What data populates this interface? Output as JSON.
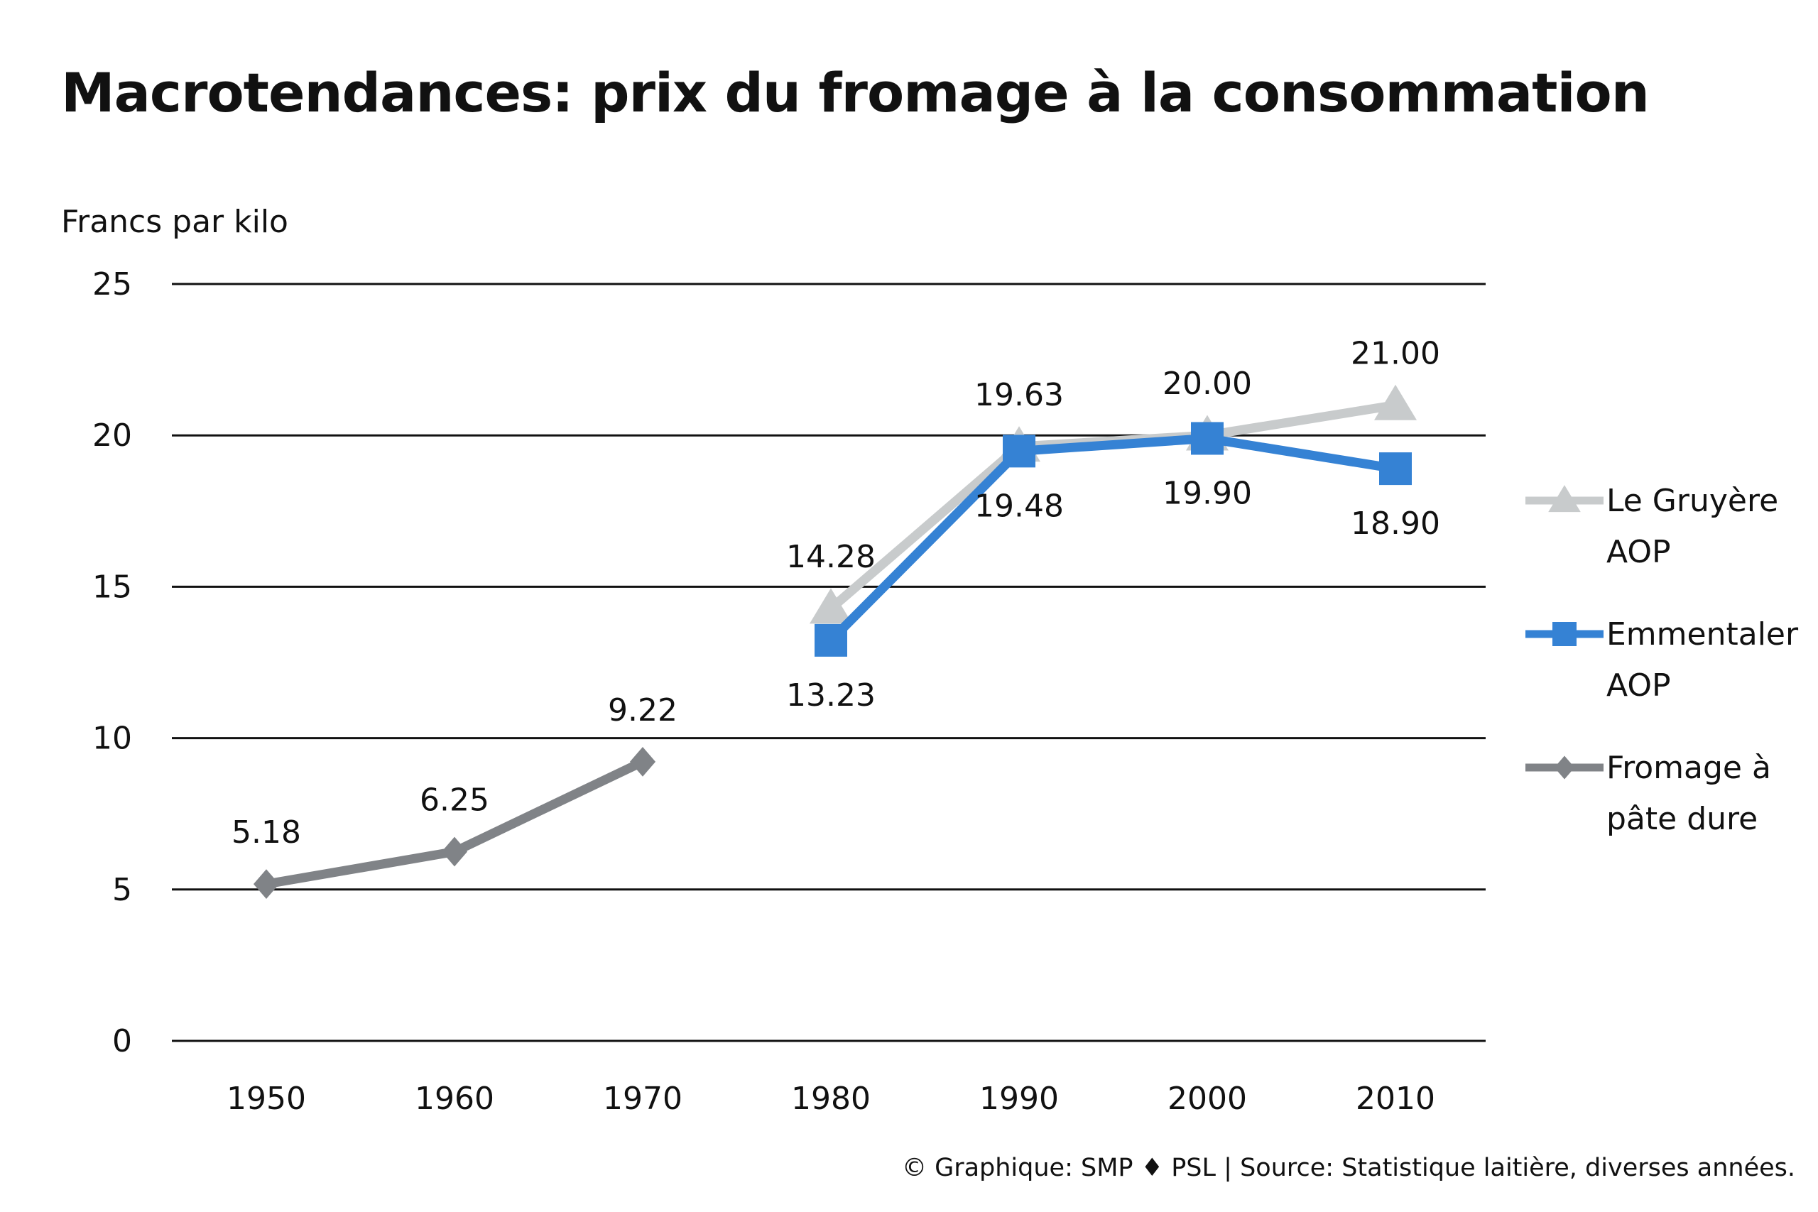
{
  "chart_data": {
    "type": "line",
    "title": "Macrotendances: prix du fromage à la consommation",
    "ylabel": "Francs par kilo",
    "xlabel": "",
    "ylim": [
      0,
      25
    ],
    "yticks": [
      "0",
      "5",
      "10",
      "15",
      "20",
      "25"
    ],
    "categories": [
      "1950",
      "1960",
      "1970",
      "1980",
      "1990",
      "2000",
      "2010"
    ],
    "grid": true,
    "legend_position": "right",
    "series": [
      {
        "name": "Le Gruyère AOP",
        "legend_lines": [
          "Le Gruyère",
          "AOP"
        ],
        "marker": "triangle",
        "color": "#c8cbcc",
        "values": [
          null,
          null,
          null,
          14.28,
          19.63,
          20.0,
          21.0
        ],
        "labels": [
          null,
          null,
          null,
          "14.28",
          "19.63",
          "20.00",
          "21.00"
        ],
        "label_side": "above"
      },
      {
        "name": "Emmentaler AOP",
        "legend_lines": [
          "Emmentaler",
          "AOP"
        ],
        "marker": "square",
        "color": "#3582d4",
        "values": [
          null,
          null,
          null,
          13.23,
          19.48,
          19.9,
          18.9
        ],
        "labels": [
          null,
          null,
          null,
          "13.23",
          "19.48",
          "19.90",
          "18.90"
        ],
        "label_side": "below"
      },
      {
        "name": "Fromage à pâte dure",
        "legend_lines": [
          "Fromage à",
          "pâte dure"
        ],
        "marker": "diamond",
        "color": "#808387",
        "values": [
          5.18,
          6.25,
          9.22,
          null,
          null,
          null,
          null
        ],
        "labels": [
          "5.18",
          "6.25",
          "9.22",
          null,
          null,
          null,
          null
        ],
        "label_side": "above"
      }
    ]
  },
  "source": {
    "copyright_symbol": "©",
    "credit": "Graphique: SMP",
    "separator_symbol": "♦",
    "credit2": "PSL | Source: Statistique laitière, diverses années."
  }
}
